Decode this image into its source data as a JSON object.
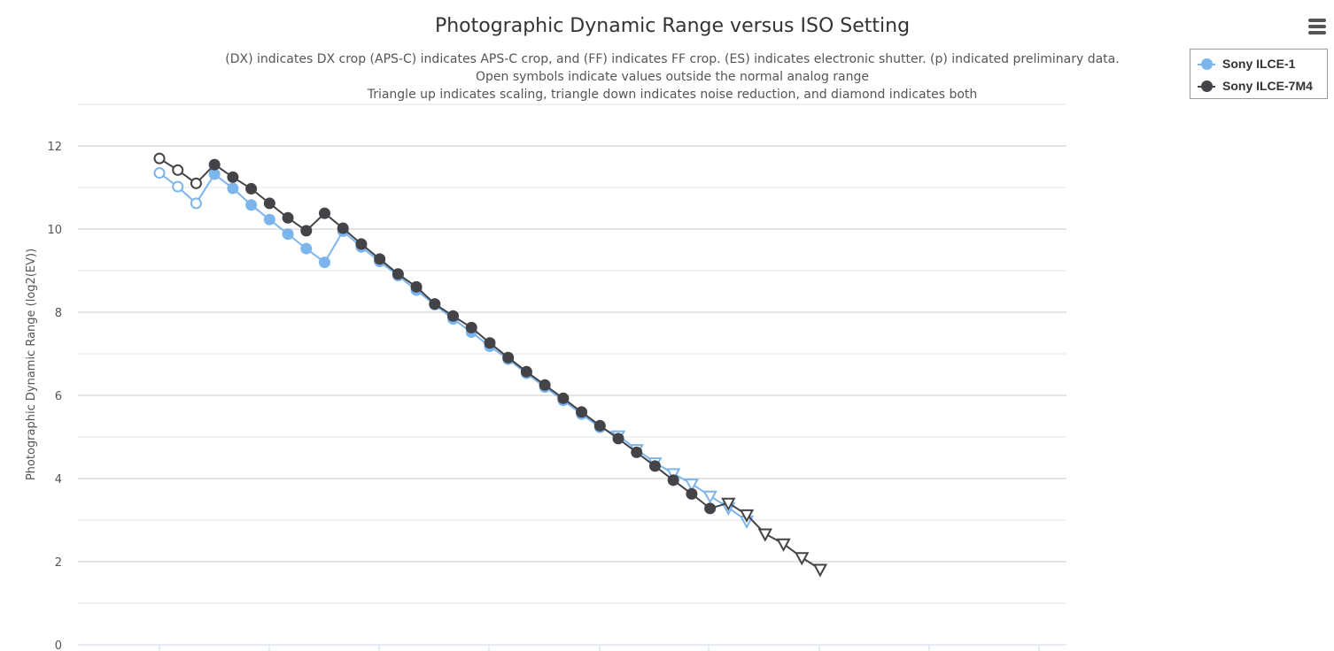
{
  "chart_data": {
    "type": "line",
    "title": "Photographic Dynamic Range versus ISO Setting",
    "subtitle_lines": [
      "(DX) indicates DX crop (APS-C) indicates APS-C crop, and (FF) indicates FF crop. (ES) indicates electronic shutter. (p) indicated preliminary data.",
      "Open symbols indicate values outside the normal analog range",
      "Triangle up indicates scaling, triangle down indicates noise reduction, and diamond indicates both"
    ],
    "ylabel": "Photographic Dynamic Range (log2(EV))",
    "xlabel": "",
    "ylim": [
      0,
      13
    ],
    "yticks": [
      0,
      2,
      4,
      6,
      8,
      10,
      12
    ],
    "grid": true,
    "legend_position": "top-right",
    "series": [
      {
        "name": "Sony ILCE-1",
        "color": "#7cb5ec",
        "points": [
          {
            "x": 1,
            "y": 11.35,
            "marker": "open-circle"
          },
          {
            "x": 2,
            "y": 11.02,
            "marker": "open-circle"
          },
          {
            "x": 3,
            "y": 10.62,
            "marker": "open-circle"
          },
          {
            "x": 4,
            "y": 11.32,
            "marker": "circle"
          },
          {
            "x": 5,
            "y": 10.98,
            "marker": "circle"
          },
          {
            "x": 6,
            "y": 10.58,
            "marker": "circle"
          },
          {
            "x": 7,
            "y": 10.23,
            "marker": "circle"
          },
          {
            "x": 8,
            "y": 9.88,
            "marker": "circle"
          },
          {
            "x": 9,
            "y": 9.53,
            "marker": "circle"
          },
          {
            "x": 10,
            "y": 9.2,
            "marker": "circle"
          },
          {
            "x": 11,
            "y": 9.95,
            "marker": "circle"
          },
          {
            "x": 12,
            "y": 9.57,
            "marker": "circle"
          },
          {
            "x": 13,
            "y": 9.22,
            "marker": "circle"
          },
          {
            "x": 14,
            "y": 8.88,
            "marker": "circle"
          },
          {
            "x": 15,
            "y": 8.53,
            "marker": "circle"
          },
          {
            "x": 16,
            "y": 8.18,
            "marker": "circle"
          },
          {
            "x": 17,
            "y": 7.84,
            "marker": "circle"
          },
          {
            "x": 18,
            "y": 7.52,
            "marker": "circle"
          },
          {
            "x": 19,
            "y": 7.18,
            "marker": "circle"
          },
          {
            "x": 20,
            "y": 6.87,
            "marker": "circle"
          },
          {
            "x": 21,
            "y": 6.53,
            "marker": "circle"
          },
          {
            "x": 22,
            "y": 6.2,
            "marker": "circle"
          },
          {
            "x": 23,
            "y": 5.88,
            "marker": "circle"
          },
          {
            "x": 24,
            "y": 5.55,
            "marker": "circle"
          },
          {
            "x": 25,
            "y": 5.23,
            "marker": "circle"
          },
          {
            "x": 26,
            "y": 5.03,
            "marker": "open-triangle-down"
          },
          {
            "x": 27,
            "y": 4.7,
            "marker": "open-triangle-down"
          },
          {
            "x": 28,
            "y": 4.38,
            "marker": "open-triangle-down"
          },
          {
            "x": 29,
            "y": 4.12,
            "marker": "open-triangle-down"
          },
          {
            "x": 30,
            "y": 3.87,
            "marker": "open-triangle-down"
          },
          {
            "x": 31,
            "y": 3.58,
            "marker": "open-triangle-down"
          },
          {
            "x": 32,
            "y": 3.3,
            "marker": "open-triangle-down"
          },
          {
            "x": 33,
            "y": 2.98,
            "marker": "open-triangle-down"
          }
        ]
      },
      {
        "name": "Sony ILCE-7M4",
        "color": "#434348",
        "points": [
          {
            "x": 1,
            "y": 11.7,
            "marker": "open-circle"
          },
          {
            "x": 2,
            "y": 11.42,
            "marker": "open-circle"
          },
          {
            "x": 3,
            "y": 11.1,
            "marker": "open-circle"
          },
          {
            "x": 4,
            "y": 11.55,
            "marker": "circle"
          },
          {
            "x": 5,
            "y": 11.25,
            "marker": "circle"
          },
          {
            "x": 6,
            "y": 10.97,
            "marker": "circle"
          },
          {
            "x": 7,
            "y": 10.62,
            "marker": "circle"
          },
          {
            "x": 8,
            "y": 10.27,
            "marker": "circle"
          },
          {
            "x": 9,
            "y": 9.96,
            "marker": "circle"
          },
          {
            "x": 10,
            "y": 10.38,
            "marker": "circle"
          },
          {
            "x": 11,
            "y": 10.02,
            "marker": "circle"
          },
          {
            "x": 12,
            "y": 9.64,
            "marker": "circle"
          },
          {
            "x": 13,
            "y": 9.28,
            "marker": "circle"
          },
          {
            "x": 14,
            "y": 8.92,
            "marker": "circle"
          },
          {
            "x": 15,
            "y": 8.61,
            "marker": "circle"
          },
          {
            "x": 16,
            "y": 8.2,
            "marker": "circle"
          },
          {
            "x": 17,
            "y": 7.91,
            "marker": "circle"
          },
          {
            "x": 18,
            "y": 7.63,
            "marker": "circle"
          },
          {
            "x": 19,
            "y": 7.26,
            "marker": "circle"
          },
          {
            "x": 20,
            "y": 6.91,
            "marker": "circle"
          },
          {
            "x": 21,
            "y": 6.57,
            "marker": "circle"
          },
          {
            "x": 22,
            "y": 6.25,
            "marker": "circle"
          },
          {
            "x": 23,
            "y": 5.93,
            "marker": "circle"
          },
          {
            "x": 24,
            "y": 5.6,
            "marker": "circle"
          },
          {
            "x": 25,
            "y": 5.27,
            "marker": "circle"
          },
          {
            "x": 26,
            "y": 4.96,
            "marker": "circle"
          },
          {
            "x": 27,
            "y": 4.63,
            "marker": "circle"
          },
          {
            "x": 28,
            "y": 4.3,
            "marker": "circle"
          },
          {
            "x": 29,
            "y": 3.96,
            "marker": "circle"
          },
          {
            "x": 30,
            "y": 3.63,
            "marker": "circle"
          },
          {
            "x": 31,
            "y": 3.28,
            "marker": "circle"
          },
          {
            "x": 32,
            "y": 3.41,
            "marker": "open-triangle-down"
          },
          {
            "x": 33,
            "y": 3.13,
            "marker": "open-triangle-down"
          },
          {
            "x": 34,
            "y": 2.67,
            "marker": "open-triangle-down"
          },
          {
            "x": 35,
            "y": 2.43,
            "marker": "open-triangle-down"
          },
          {
            "x": 36,
            "y": 2.1,
            "marker": "open-triangle-down"
          },
          {
            "x": 37,
            "y": 1.82,
            "marker": "open-triangle-down"
          }
        ]
      }
    ]
  },
  "menu_icon": "hamburger-menu-icon"
}
